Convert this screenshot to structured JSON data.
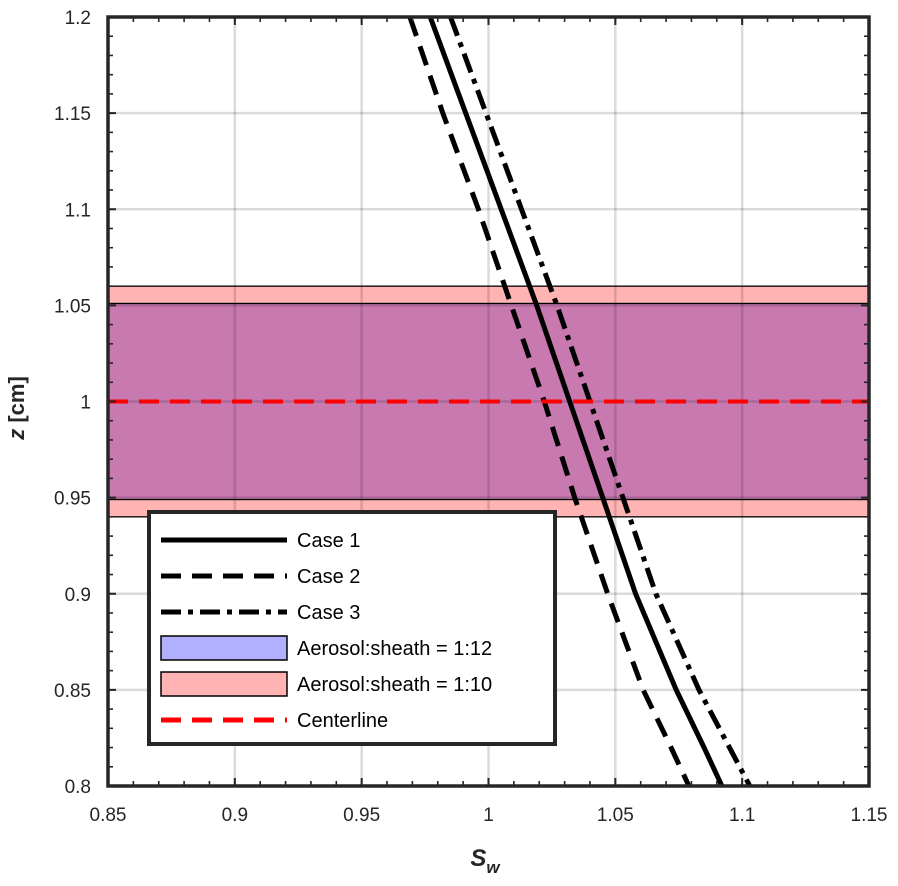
{
  "chart_data": {
    "type": "line",
    "xlabel": {
      "main": "S",
      "sub": "w"
    },
    "ylabel": {
      "main": "z",
      "unit": " [cm]"
    },
    "xlim": [
      0.85,
      1.15
    ],
    "ylim": [
      0.8,
      1.2
    ],
    "xticks": [
      {
        "v": 0.85,
        "label": "0.85"
      },
      {
        "v": 0.9,
        "label": "0.9"
      },
      {
        "v": 0.95,
        "label": "0.95"
      },
      {
        "v": 1.0,
        "label": "1"
      },
      {
        "v": 1.05,
        "label": "1.05"
      },
      {
        "v": 1.1,
        "label": "1.1"
      },
      {
        "v": 1.15,
        "label": "1.15"
      }
    ],
    "yticks": [
      {
        "v": 0.8,
        "label": "0.8"
      },
      {
        "v": 0.85,
        "label": "0.85"
      },
      {
        "v": 0.9,
        "label": "0.9"
      },
      {
        "v": 0.95,
        "label": "0.95"
      },
      {
        "v": 1.0,
        "label": "1"
      },
      {
        "v": 1.05,
        "label": "1.05"
      },
      {
        "v": 1.1,
        "label": "1.1"
      },
      {
        "v": 1.15,
        "label": "1.15"
      },
      {
        "v": 1.2,
        "label": "1.2"
      }
    ],
    "grid": true,
    "series": [
      {
        "name": "Case 1",
        "style": "solid",
        "color": "#000000",
        "points": [
          [
            0.977,
            1.2
          ],
          [
            0.991,
            1.15
          ],
          [
            1.005,
            1.1
          ],
          [
            1.019,
            1.05
          ],
          [
            1.032,
            1.0
          ],
          [
            1.045,
            0.95
          ],
          [
            1.058,
            0.9
          ],
          [
            1.074,
            0.85
          ],
          [
            1.085,
            0.82
          ],
          [
            1.092,
            0.8
          ]
        ]
      },
      {
        "name": "Case 2",
        "style": "dashed",
        "color": "#000000",
        "points": [
          [
            0.969,
            1.2
          ],
          [
            0.982,
            1.15
          ],
          [
            0.996,
            1.1
          ],
          [
            1.009,
            1.05
          ],
          [
            1.022,
            1.0
          ],
          [
            1.034,
            0.95
          ],
          [
            1.047,
            0.9
          ],
          [
            1.061,
            0.85
          ],
          [
            1.072,
            0.82
          ],
          [
            1.079,
            0.8
          ]
        ]
      },
      {
        "name": "Case 3",
        "style": "dashdot",
        "color": "#000000",
        "points": [
          [
            0.985,
            1.2
          ],
          [
            0.999,
            1.15
          ],
          [
            1.013,
            1.1
          ],
          [
            1.027,
            1.05
          ],
          [
            1.04,
            1.0
          ],
          [
            1.053,
            0.95
          ],
          [
            1.066,
            0.9
          ],
          [
            1.083,
            0.85
          ],
          [
            1.095,
            0.82
          ],
          [
            1.103,
            0.8
          ]
        ]
      },
      {
        "name": "Centerline",
        "style": "dashed",
        "color": "#ff0000",
        "points": [
          [
            0.85,
            1.0
          ],
          [
            1.15,
            1.0
          ]
        ]
      }
    ],
    "bands": [
      {
        "name": "Aerosol:sheath = 1:10",
        "y": [
          0.94,
          1.06
        ],
        "fill": "#ffb3b3",
        "edge": "#000000"
      },
      {
        "name": "Aerosol:sheath = 1:12",
        "y": [
          0.949,
          1.051
        ],
        "fill": "#b0b0ff",
        "edge": "#000000"
      }
    ],
    "band_overlap_color": "#c879b0",
    "legend": {
      "placement": "lower-left",
      "entries": [
        {
          "label": "Case 1",
          "kind": "line",
          "style": "solid",
          "color": "#000000"
        },
        {
          "label": "Case 2",
          "kind": "line",
          "style": "dashed",
          "color": "#000000"
        },
        {
          "label": "Case 3",
          "kind": "line",
          "style": "dashdot",
          "color": "#000000"
        },
        {
          "label": "Aerosol:sheath = 1:12",
          "kind": "patch",
          "color": "#b0b0ff"
        },
        {
          "label": "Aerosol:sheath = 1:10",
          "kind": "patch",
          "color": "#ffb3b3"
        },
        {
          "label": "Centerline",
          "kind": "line",
          "style": "dashed",
          "color": "#ff0000"
        }
      ]
    }
  }
}
